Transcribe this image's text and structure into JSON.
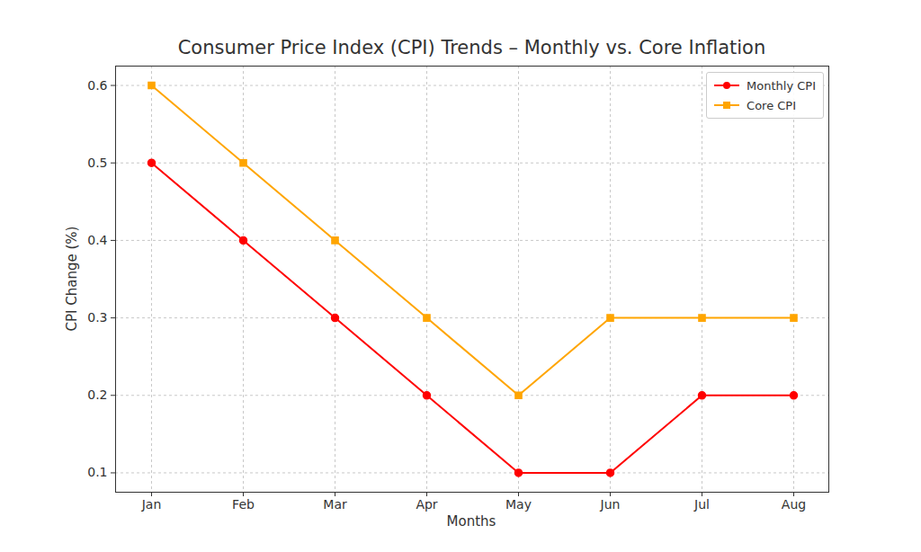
{
  "chart_data": {
    "type": "line",
    "title": "Consumer Price Index (CPI) Trends – Monthly vs. Core Inflation",
    "x_label": "Months",
    "y_label": "CPI Change (%)",
    "categories": [
      "Jan",
      "Feb",
      "Mar",
      "Apr",
      "May",
      "Jun",
      "Jul",
      "Aug"
    ],
    "series": [
      {
        "name": "Monthly CPI",
        "color": "#ff0000",
        "marker": "circle",
        "line_style": "solid",
        "values": [
          0.5,
          0.4,
          0.3,
          0.2,
          0.1,
          0.1,
          0.2,
          0.2
        ]
      },
      {
        "name": "Core CPI",
        "color": "#ffa500",
        "marker": "square",
        "line_style": "solid",
        "values": [
          0.6,
          0.5,
          0.4,
          0.3,
          0.2,
          0.3,
          0.3,
          0.3
        ]
      }
    ],
    "ylim": [
      0.075,
      0.625
    ],
    "yticks": [
      0.1,
      0.2,
      0.3,
      0.4,
      0.5,
      0.6
    ],
    "grid": true,
    "legend": "upper right"
  }
}
